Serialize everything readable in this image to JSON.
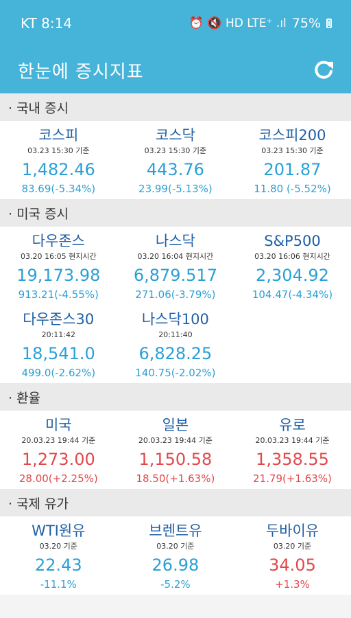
{
  "status_bar": {
    "carrier_time": "KT 8:14",
    "signals": "⏰ 🔇 HD LTE⁺ .ıl",
    "battery": "75%"
  },
  "app": {
    "title": "한눈에 증시지표"
  },
  "sections": [
    {
      "title": "· 국내 증시",
      "items": [
        {
          "name": "코스피",
          "time": "03.23 15:30 기준",
          "value": "1,482.46",
          "change": "83.69(-5.34%)",
          "direction": "down"
        },
        {
          "name": "코스닥",
          "time": "03.23 15:30 기준",
          "value": "443.76",
          "change": "23.99(-5.13%)",
          "direction": "down"
        },
        {
          "name": "코스피200",
          "time": "03.23 15:30 기준",
          "value": "201.87",
          "change": "11.80 (-5.52%)",
          "direction": "down"
        }
      ]
    },
    {
      "title": "· 미국 증시",
      "items": [
        {
          "name": "다우존스",
          "time": "03.20 16:05 현지시간",
          "value": "19,173.98",
          "change": "913.21(-4.55%)",
          "direction": "down"
        },
        {
          "name": "나스닥",
          "time": "03.20 16:04 현지시간",
          "value": "6,879.517",
          "change": "271.06(-3.79%)",
          "direction": "down"
        },
        {
          "name": "S&P500",
          "time": "03.20 16:06 현지시간",
          "value": "2,304.92",
          "change": "104.47(-4.34%)",
          "direction": "down"
        },
        {
          "name": "다우존스30",
          "time": "20:11:42",
          "value": "18,541.0",
          "change": "499.0(-2.62%)",
          "direction": "down"
        },
        {
          "name": "나스닥100",
          "time": "20:11:40",
          "value": "6,828.25",
          "change": "140.75(-2.02%)",
          "direction": "down"
        }
      ]
    },
    {
      "title": "· 환율",
      "items": [
        {
          "name": "미국",
          "time": "20.03.23 19:44 기준",
          "value": "1,273.00",
          "change": "28.00(+2.25%)",
          "direction": "up"
        },
        {
          "name": "일본",
          "time": "20.03.23 19:44 기준",
          "value": "1,150.58",
          "change": "18.50(+1.63%)",
          "direction": "up"
        },
        {
          "name": "유로",
          "time": "20.03.23 19:44 기준",
          "value": "1,358.55",
          "change": "21.79(+1.63%)",
          "direction": "up"
        }
      ]
    },
    {
      "title": "· 국제 유가",
      "items": [
        {
          "name": "WTI원유",
          "time": "03.20 기준",
          "value": "22.43",
          "change": "-11.1%",
          "direction": "down"
        },
        {
          "name": "브렌트유",
          "time": "03.20 기준",
          "value": "26.98",
          "change": "-5.2%",
          "direction": "down"
        },
        {
          "name": "두바이유",
          "time": "03.20 기준",
          "value": "34.05",
          "change": "+1.3%",
          "direction": "up"
        }
      ]
    }
  ],
  "colors": {
    "accent": "#46b3d9",
    "down": "#29a0d6",
    "up": "#e2484a",
    "name": "#1f5fa6"
  },
  "icons": {
    "refresh": "refresh-icon",
    "battery": "battery-icon"
  }
}
